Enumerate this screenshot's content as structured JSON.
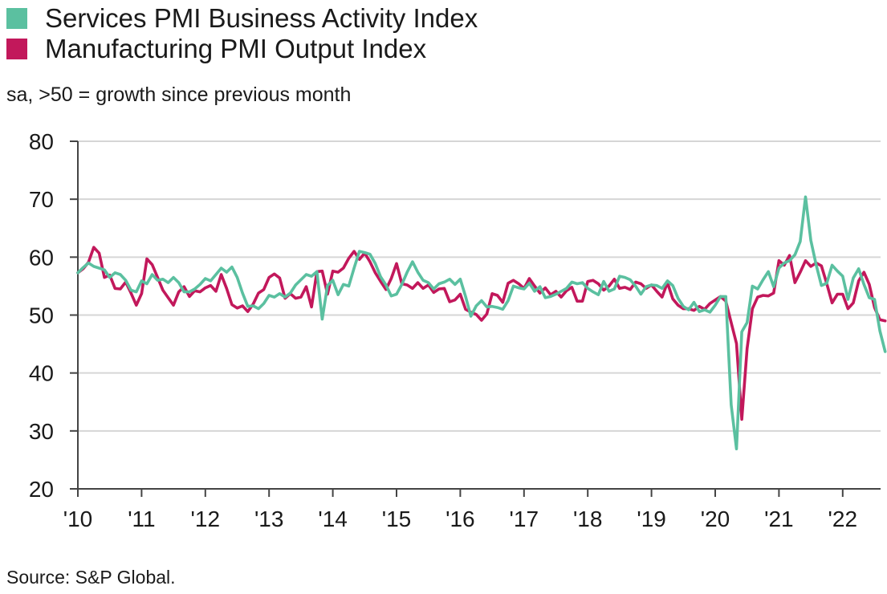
{
  "chart_data": {
    "type": "line",
    "title": "",
    "subtitle": "sa, >50 = growth since previous month",
    "source": "Source: S&P Global.",
    "xlabel": "",
    "ylabel": "",
    "ylim": [
      20,
      80
    ],
    "yticks": [
      20,
      30,
      40,
      50,
      60,
      70,
      80
    ],
    "x_start": "2010-01",
    "x_end": "2022-08",
    "xtick_labels": [
      "'10",
      "'11",
      "'12",
      "'13",
      "'14",
      "'15",
      "'16",
      "'17",
      "'18",
      "'19",
      "'20",
      "'21",
      "'22"
    ],
    "grid": "horizontal",
    "legend": "top-left",
    "series": [
      {
        "name": "Services PMI Business Activity Index",
        "color": "#5BC0A0",
        "values": [
          57.3,
          58.2,
          59.0,
          58.4,
          58.1,
          57.8,
          56.5,
          57.3,
          57.0,
          56.0,
          54.3,
          54.0,
          55.9,
          55.4,
          57.0,
          56.0,
          56.2,
          55.6,
          56.5,
          55.6,
          54.0,
          54.0,
          54.5,
          55.3,
          56.3,
          55.9,
          57.0,
          58.1,
          57.4,
          58.3,
          56.5,
          53.8,
          51.5,
          51.6,
          51.1,
          52.0,
          53.4,
          53.1,
          53.7,
          53.1,
          53.8,
          55.2,
          56.1,
          57.0,
          56.7,
          57.5,
          49.3,
          55.1,
          56.0,
          53.5,
          55.3,
          55.0,
          58.1,
          61.0,
          60.8,
          60.5,
          58.9,
          56.6,
          55.2,
          53.3,
          53.6,
          55.3,
          57.4,
          59.2,
          57.4,
          56.0,
          55.6,
          54.5,
          55.4,
          55.7,
          56.2,
          55.3,
          56.2,
          53.2,
          49.8,
          51.6,
          52.5,
          51.4,
          51.5,
          51.3,
          51.0,
          52.5,
          55.0,
          54.7,
          54.5,
          55.5,
          54.1,
          54.9,
          53.0,
          53.2,
          53.6,
          54.1,
          54.6,
          55.7,
          55.4,
          55.6,
          54.6,
          54.0,
          53.5,
          55.8,
          54.1,
          54.5,
          56.7,
          56.5,
          56.1,
          55.0,
          53.6,
          54.9,
          55.2,
          55.1,
          54.6,
          55.9,
          55.1,
          52.9,
          51.5,
          50.9,
          52.2,
          50.6,
          50.9,
          50.5,
          51.7,
          53.2,
          53.2,
          34.5,
          26.9,
          47.1,
          48.7,
          55.0,
          54.5,
          56.1,
          57.5,
          54.9,
          58.1,
          59.0,
          59.4,
          60.4,
          62.7,
          70.4,
          62.9,
          58.7,
          55.1,
          55.5,
          58.6,
          57.6,
          56.7,
          52.7,
          56.4,
          58.0,
          55.3,
          53.0,
          52.7,
          47.3,
          43.7
        ]
      },
      {
        "name": "Manufacturing PMI Output Index",
        "color": "#C2185B",
        "values": [
          57.3,
          58.0,
          59.1,
          61.7,
          60.7,
          56.5,
          56.9,
          54.6,
          54.5,
          55.7,
          53.8,
          51.7,
          53.7,
          59.7,
          58.7,
          56.5,
          54.3,
          53.0,
          51.7,
          54.0,
          54.9,
          53.2,
          54.2,
          54.0,
          54.7,
          55.1,
          54.1,
          57.0,
          54.6,
          51.8,
          51.2,
          51.6,
          50.6,
          51.9,
          53.8,
          54.4,
          56.5,
          57.1,
          56.4,
          52.9,
          53.7,
          52.9,
          53.1,
          54.9,
          51.4,
          57.5,
          57.6,
          53.6,
          57.6,
          57.4,
          58.1,
          59.8,
          61.0,
          59.6,
          60.7,
          59.2,
          57.3,
          55.8,
          54.4,
          56.3,
          58.9,
          55.4,
          55.2,
          54.6,
          55.6,
          54.6,
          55.2,
          53.9,
          54.5,
          54.6,
          52.3,
          52.6,
          53.6,
          51.0,
          50.5,
          50.1,
          49.1,
          50.2,
          53.7,
          53.4,
          52.2,
          55.5,
          56.0,
          55.4,
          54.6,
          56.3,
          55.0,
          53.8,
          54.7,
          53.5,
          54.1,
          53.1,
          54.2,
          54.8,
          52.4,
          52.4,
          55.8,
          56.0,
          55.4,
          54.3,
          55.0,
          56.2,
          54.6,
          54.8,
          54.4,
          55.7,
          55.4,
          54.6,
          55.2,
          54.1,
          53.1,
          55.6,
          52.8,
          51.7,
          51.1,
          51.1,
          50.8,
          51.5,
          51.0,
          52.0,
          52.6,
          53.2,
          52.4,
          48.7,
          45.1,
          32.0,
          44.2,
          51.1,
          53.1,
          53.4,
          53.3,
          53.8,
          59.4,
          58.6,
          60.3,
          55.6,
          57.4,
          59.4,
          58.4,
          59.0,
          58.5,
          55.4,
          52.1,
          53.6,
          53.6,
          51.1,
          52.1,
          55.9,
          57.4,
          55.3,
          51.3,
          49.2,
          49.0
        ]
      }
    ]
  }
}
